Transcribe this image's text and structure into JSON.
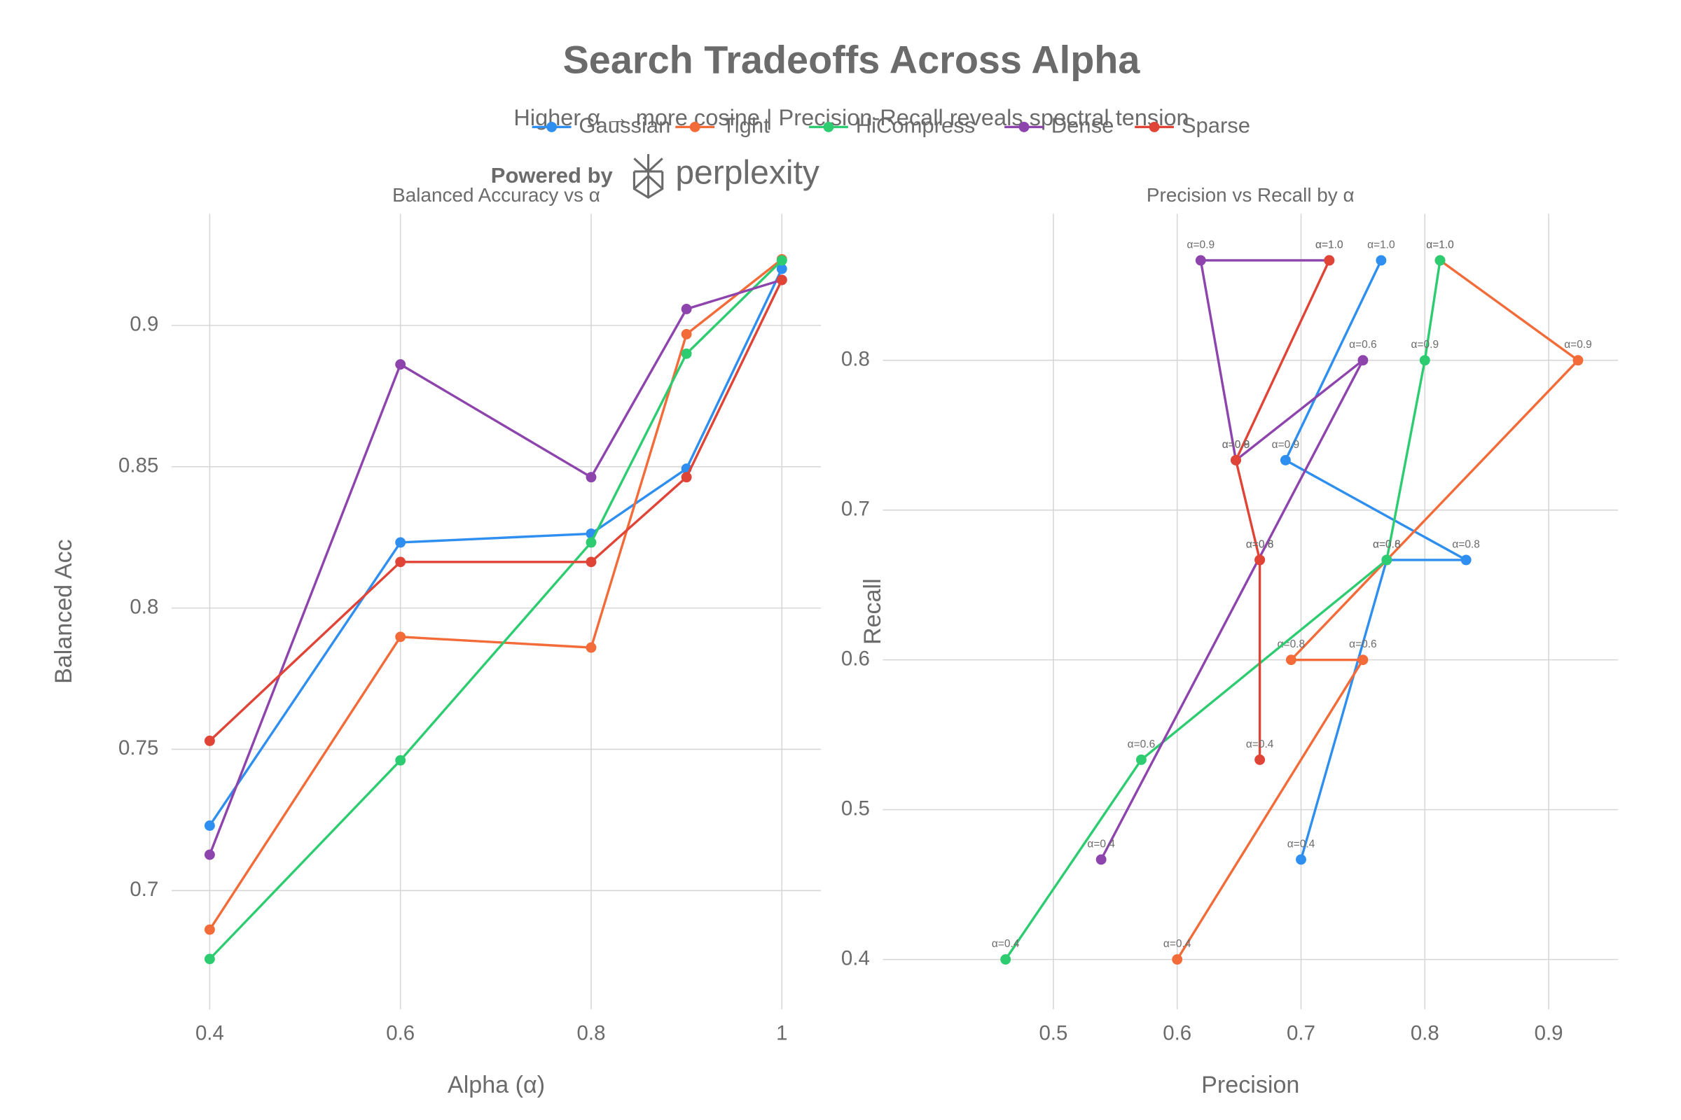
{
  "title": "Search Tradeoffs Across Alpha",
  "subtitle": "Higher α → more cosine | Precision-Recall reveals spectral tension",
  "branding": {
    "prefix": "Powered by",
    "name": "perplexity"
  },
  "chart_data": [
    {
      "type": "line",
      "title": "Balanced Accuracy vs α",
      "x_label": "Alpha (α)",
      "y_label": "Balanced Acc",
      "x": [
        0.4,
        0.6,
        0.8,
        0.9,
        1
      ],
      "xlim": [
        0.36,
        1.041
      ],
      "xticks": [
        0.4,
        0.6,
        0.8,
        1
      ],
      "ylim": [
        0.658,
        0.9395
      ],
      "yticks": [
        0.7,
        0.75,
        0.8,
        0.85,
        0.9
      ],
      "grid": true,
      "series": [
        {
          "name": "Gaussian",
          "color": "#2e8ff0",
          "values": [
            0.723,
            0.8232,
            0.8263,
            0.8493,
            0.92
          ]
        },
        {
          "name": "Tight",
          "color": "#f26b38",
          "values": [
            0.6862,
            0.7898,
            0.786,
            0.8969,
            0.9234
          ]
        },
        {
          "name": "HiCompress",
          "color": "#2ecc71",
          "values": [
            0.6758,
            0.7461,
            0.8232,
            0.89,
            0.923
          ]
        },
        {
          "name": "Dense",
          "color": "#8e44ad",
          "values": [
            0.7127,
            0.8862,
            0.8463,
            0.9058,
            0.9161
          ]
        },
        {
          "name": "Sparse",
          "color": "#e04436",
          "values": [
            0.753,
            0.8163,
            0.8163,
            0.8463,
            0.9161
          ]
        }
      ]
    },
    {
      "type": "line",
      "title": "Precision vs Recall by α",
      "x_label": "Precision",
      "y_label": "Recall",
      "xlim": [
        0.3623,
        0.956
      ],
      "xticks": [
        0.5,
        0.6,
        0.7,
        0.8,
        0.9
      ],
      "ylim": [
        0.3667,
        0.8978
      ],
      "yticks": [
        0.4,
        0.5,
        0.6,
        0.7,
        0.8
      ],
      "grid": true,
      "point_labels": [
        "α=0.4",
        "α=0.6",
        "α=0.8",
        "α=0.9",
        "α=1.0"
      ],
      "series": [
        {
          "name": "Gaussian",
          "color": "#2e8ff0",
          "x": [
            0.7,
            0.7692,
            0.8333,
            0.6875,
            0.7647
          ],
          "values": [
            0.4667,
            0.6667,
            0.6667,
            0.7333,
            0.8667
          ]
        },
        {
          "name": "Tight",
          "color": "#f26b38",
          "x": [
            0.6,
            0.75,
            0.692,
            0.9237,
            0.8123
          ],
          "values": [
            0.4,
            0.6,
            0.6,
            0.8,
            0.8667
          ]
        },
        {
          "name": "HiCompress",
          "color": "#2ecc71",
          "x": [
            0.4614,
            0.571,
            0.7692,
            0.8,
            0.8123
          ],
          "values": [
            0.4,
            0.5333,
            0.6667,
            0.8,
            0.8667
          ]
        },
        {
          "name": "Dense",
          "color": "#8e44ad",
          "x": [
            0.5386,
            0.75,
            0.6474,
            0.619,
            0.7228
          ],
          "values": [
            0.4667,
            0.8,
            0.7333,
            0.8667,
            0.8667
          ]
        },
        {
          "name": "Sparse",
          "color": "#e04436",
          "x": [
            0.6667,
            0.6667,
            0.6667,
            0.6474,
            0.7228
          ],
          "values": [
            0.5333,
            0.6667,
            0.6667,
            0.7333,
            0.8667
          ]
        }
      ]
    }
  ]
}
